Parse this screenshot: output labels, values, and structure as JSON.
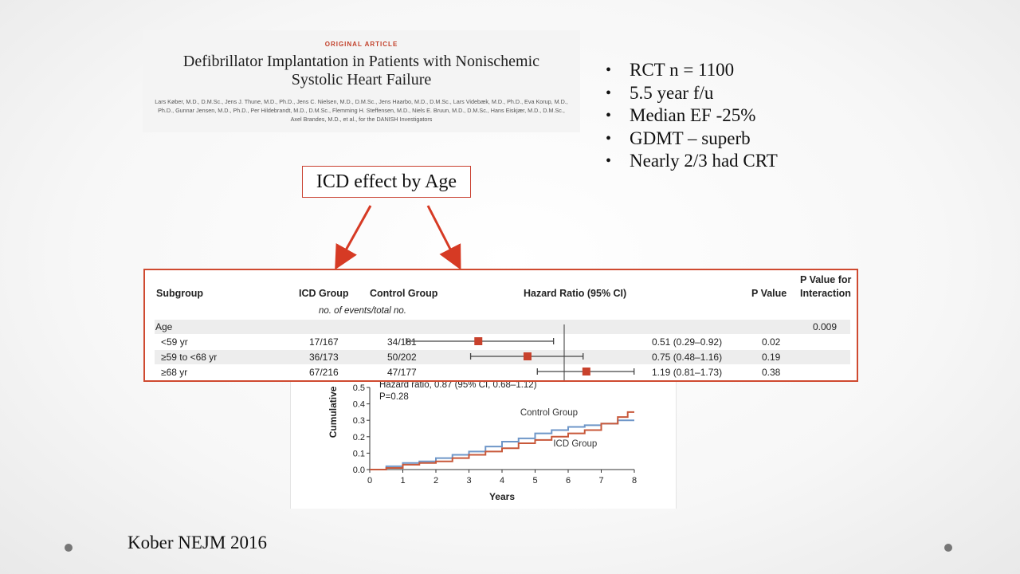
{
  "article": {
    "kicker": "ORIGINAL ARTICLE",
    "title": "Defibrillator Implantation in Patients with Nonischemic Systolic Heart Failure",
    "authors": "Lars Køber, M.D., D.M.Sc., Jens J. Thune, M.D., Ph.D., Jens C. Nielsen, M.D., D.M.Sc., Jens Haarbo, M.D., D.M.Sc., Lars Videbæk, M.D., Ph.D., Eva Korup, M.D., Ph.D., Gunnar Jensen, M.D., Ph.D., Per Hildebrandt, M.D., D.M.Sc., Flemming H. Steffensen, M.D., Niels E. Bruun, M.D., D.M.Sc., Hans Eiskjær, M.D., D.M.Sc., Axel Brandes, M.D., et al., for the DANISH Investigators"
  },
  "bullets": [
    "RCT n = 1100",
    "5.5  year f/u",
    "Median EF -25%",
    "GDMT – superb",
    "Nearly 2/3 had CRT"
  ],
  "callout": "ICD effect by Age",
  "forest": {
    "headers": {
      "subgroup": "Subgroup",
      "icd": "ICD Group",
      "control": "Control Group",
      "hr": "Hazard Ratio (95% CI)",
      "p": "P Value",
      "pint1": "P Value for",
      "pint2": "Interaction",
      "subnote": "no. of events/total no."
    },
    "group": {
      "label": "Age",
      "p_interaction": "0.009"
    },
    "rows": [
      {
        "label": "<59 yr",
        "icd": "17/167",
        "control": "34/181",
        "hr_text": "0.51 (0.29–0.92)",
        "p": "0.02",
        "hr": 0.51,
        "lo": 0.29,
        "hi": 0.92
      },
      {
        "label": "≥59 to <68 yr",
        "icd": "36/173",
        "control": "50/202",
        "hr_text": "0.75 (0.48–1.16)",
        "p": "0.19",
        "hr": 0.75,
        "lo": 0.48,
        "hi": 1.16
      },
      {
        "label": "≥68 yr",
        "icd": "67/216",
        "control": "47/177",
        "hr_text": "1.19 (0.81–1.73)",
        "p": "0.38",
        "hr": 1.19,
        "lo": 0.81,
        "hi": 1.73
      }
    ]
  },
  "km": {
    "annotation": "Hazard ratio, 0.87 (95% CI, 0.68–1.12)",
    "pvalue": "P=0.28",
    "ylabel": "Cumulative",
    "xlabel": "Years",
    "control_label": "Control Group",
    "icd_label": "ICD Group",
    "colors": {
      "control": "#6e96c8",
      "icd": "#c8583a"
    }
  },
  "chart_data": {
    "type": "line",
    "xlabel": "Years",
    "ylabel": "Cumulative",
    "xlim": [
      0,
      8
    ],
    "ylim": [
      0,
      0.5
    ],
    "xticks": [
      0,
      1,
      2,
      3,
      4,
      5,
      6,
      7,
      8
    ],
    "yticks": [
      0.0,
      0.1,
      0.2,
      0.3,
      0.4,
      0.5
    ],
    "series": [
      {
        "name": "Control Group",
        "x": [
          0,
          0.5,
          1,
          1.5,
          2,
          2.5,
          3,
          3.5,
          4,
          4.5,
          5,
          5.5,
          6,
          6.5,
          7,
          7.5,
          7.8,
          8
        ],
        "y": [
          0,
          0.02,
          0.04,
          0.05,
          0.07,
          0.09,
          0.11,
          0.14,
          0.17,
          0.19,
          0.22,
          0.24,
          0.26,
          0.27,
          0.28,
          0.3,
          0.3,
          0.3
        ]
      },
      {
        "name": "ICD Group",
        "x": [
          0,
          0.5,
          1,
          1.5,
          2,
          2.5,
          3,
          3.5,
          4,
          4.5,
          5,
          5.5,
          6,
          6.5,
          7,
          7.5,
          7.8,
          8
        ],
        "y": [
          0,
          0.01,
          0.03,
          0.04,
          0.05,
          0.07,
          0.09,
          0.11,
          0.13,
          0.16,
          0.18,
          0.2,
          0.22,
          0.24,
          0.28,
          0.32,
          0.35,
          0.35
        ]
      }
    ]
  },
  "citation": "Kober NEJM 2016"
}
